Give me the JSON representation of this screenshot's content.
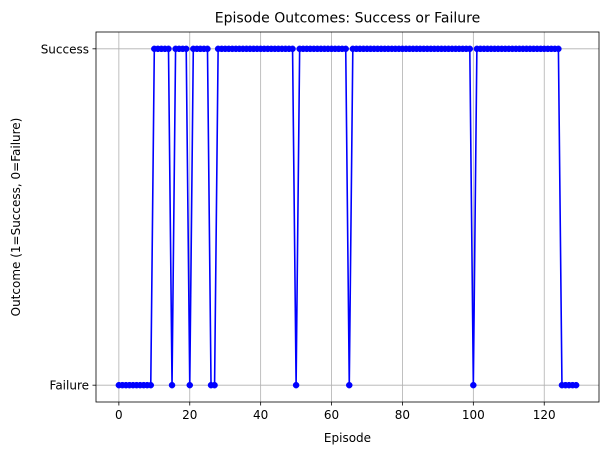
{
  "chart_data": {
    "type": "line",
    "title": "Episode Outcomes: Success or Failure",
    "xlabel": "Episode",
    "ylabel": "Outcome (1=Success, 0=Failure)",
    "xlim": [
      -6.45,
      135.45
    ],
    "ylim": [
      -0.05,
      1.05
    ],
    "xticks": [
      0,
      20,
      40,
      60,
      80,
      100,
      120
    ],
    "xtick_labels": [
      "0",
      "20",
      "40",
      "60",
      "80",
      "100",
      "120"
    ],
    "yticks": [
      0,
      1
    ],
    "ytick_labels": [
      "Failure",
      "Success"
    ],
    "grid": true,
    "marker": "circle",
    "line_color": "#0000ff",
    "series": [
      {
        "x": [
          0,
          1,
          2,
          3,
          4,
          5,
          6,
          7,
          8,
          9,
          10,
          11,
          12,
          13,
          14,
          15,
          16,
          17,
          18,
          19,
          20,
          21,
          22,
          23,
          24,
          25,
          26,
          27,
          28,
          29,
          30,
          31,
          32,
          33,
          34,
          35,
          36,
          37,
          38,
          39,
          40,
          41,
          42,
          43,
          44,
          45,
          46,
          47,
          48,
          49,
          50,
          51,
          52,
          53,
          54,
          55,
          56,
          57,
          58,
          59,
          60,
          61,
          62,
          63,
          64,
          65,
          66,
          67,
          68,
          69,
          70,
          71,
          72,
          73,
          74,
          75,
          76,
          77,
          78,
          79,
          80,
          81,
          82,
          83,
          84,
          85,
          86,
          87,
          88,
          89,
          90,
          91,
          92,
          93,
          94,
          95,
          96,
          97,
          98,
          99,
          100,
          101,
          102,
          103,
          104,
          105,
          106,
          107,
          108,
          109,
          110,
          111,
          112,
          113,
          114,
          115,
          116,
          117,
          118,
          119,
          120,
          121,
          122,
          123,
          124,
          125,
          126,
          127,
          128,
          129
        ],
        "values": [
          0,
          0,
          0,
          0,
          0,
          0,
          0,
          0,
          0,
          0,
          1,
          1,
          1,
          1,
          1,
          0,
          1,
          1,
          1,
          1,
          0,
          1,
          1,
          1,
          1,
          1,
          0,
          0,
          1,
          1,
          1,
          1,
          1,
          1,
          1,
          1,
          1,
          1,
          1,
          1,
          1,
          1,
          1,
          1,
          1,
          1,
          1,
          1,
          1,
          1,
          0,
          1,
          1,
          1,
          1,
          1,
          1,
          1,
          1,
          1,
          1,
          1,
          1,
          1,
          1,
          0,
          1,
          1,
          1,
          1,
          1,
          1,
          1,
          1,
          1,
          1,
          1,
          1,
          1,
          1,
          1,
          1,
          1,
          1,
          1,
          1,
          1,
          1,
          1,
          1,
          1,
          1,
          1,
          1,
          1,
          1,
          1,
          1,
          1,
          1,
          0,
          1,
          1,
          1,
          1,
          1,
          1,
          1,
          1,
          1,
          1,
          1,
          1,
          1,
          1,
          1,
          1,
          1,
          1,
          1,
          1,
          1,
          1,
          1,
          1,
          0,
          0,
          0,
          0,
          0
        ]
      }
    ]
  }
}
